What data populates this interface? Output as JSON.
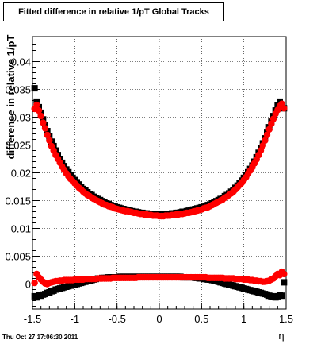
{
  "title": "Fitted difference in relative 1/pT  Global Tracks",
  "timestamp": "Thu Oct 27 17:06:30 2011",
  "chart_data": {
    "type": "scatter",
    "title": "Fitted difference in relative 1/pT  Global Tracks",
    "xlabel": "η",
    "ylabel": "difference in relative 1/pT",
    "xlim": [
      -1.5,
      1.5
    ],
    "ylim": [
      -0.0045,
      0.0445
    ],
    "xticks": [
      "-1.5",
      "-1",
      "-0.5",
      "0",
      "0.5",
      "1",
      "1.5"
    ],
    "xtick_values": [
      -1.5,
      -1,
      -0.5,
      0,
      0.5,
      1,
      1.5
    ],
    "yticks": [
      "0",
      "0.005",
      "0.01",
      "0.015",
      "0.02",
      "0.025",
      "0.03",
      "0.035",
      "0.04"
    ],
    "ytick_values": [
      0,
      0.005,
      0.01,
      0.015,
      0.02,
      0.025,
      0.03,
      0.035,
      0.04
    ],
    "grid": true,
    "series": [
      {
        "color": "#000000",
        "marker": "square",
        "x": [
          -1.475,
          -1.45,
          -1.425,
          -1.4,
          -1.375,
          -1.35,
          -1.325,
          -1.3,
          -1.275,
          -1.25,
          -1.225,
          -1.2,
          -1.175,
          -1.15,
          -1.125,
          -1.1,
          -1.075,
          -1.05,
          -1.025,
          -1.0,
          -0.975,
          -0.95,
          -0.925,
          -0.9,
          -0.875,
          -0.85,
          -0.825,
          -0.8,
          -0.775,
          -0.75,
          -0.725,
          -0.7,
          -0.675,
          -0.65,
          -0.625,
          -0.6,
          -0.575,
          -0.55,
          -0.525,
          -0.5,
          -0.475,
          -0.45,
          -0.425,
          -0.4,
          -0.375,
          -0.35,
          -0.325,
          -0.3,
          -0.275,
          -0.25,
          -0.225,
          -0.2,
          -0.175,
          -0.15,
          -0.125,
          -0.1,
          -0.075,
          -0.05,
          -0.025,
          0.0,
          0.025,
          0.05,
          0.075,
          0.1,
          0.125,
          0.15,
          0.175,
          0.2,
          0.225,
          0.25,
          0.275,
          0.3,
          0.325,
          0.35,
          0.375,
          0.4,
          0.425,
          0.45,
          0.475,
          0.5,
          0.525,
          0.55,
          0.575,
          0.6,
          0.625,
          0.65,
          0.675,
          0.7,
          0.725,
          0.75,
          0.775,
          0.8,
          0.825,
          0.85,
          0.875,
          0.9,
          0.925,
          0.95,
          0.975,
          1.0,
          1.025,
          1.05,
          1.075,
          1.1,
          1.125,
          1.15,
          1.175,
          1.2,
          1.225,
          1.25,
          1.275,
          1.3,
          1.325,
          1.35,
          1.375,
          1.4,
          1.425,
          1.45,
          1.475
        ],
        "y": [
          0.0352,
          0.0328,
          0.0318,
          0.0308,
          0.0296,
          0.0285,
          0.0275,
          0.0265,
          0.0256,
          0.0248,
          0.024,
          0.0232,
          0.0225,
          0.0218,
          0.0212,
          0.0206,
          0.0201,
          0.0196,
          0.0191,
          0.0187,
          0.0183,
          0.0179,
          0.0175,
          0.0171,
          0.0168,
          0.0165,
          0.0162,
          0.016,
          0.0157,
          0.0155,
          0.0153,
          0.0151,
          0.0149,
          0.0147,
          0.0145,
          0.0144,
          0.0142,
          0.014,
          0.0139,
          0.0138,
          0.0137,
          0.0136,
          0.0135,
          0.0134,
          0.0133,
          0.0132,
          0.0131,
          0.013,
          0.013,
          0.0129,
          0.0128,
          0.0128,
          0.0127,
          0.0127,
          0.0126,
          0.0126,
          0.0126,
          0.0125,
          0.0125,
          0.0125,
          0.0125,
          0.0125,
          0.0126,
          0.0126,
          0.0126,
          0.0127,
          0.0127,
          0.0128,
          0.0128,
          0.0129,
          0.013,
          0.013,
          0.0131,
          0.0132,
          0.0133,
          0.0134,
          0.0135,
          0.0136,
          0.0137,
          0.0138,
          0.0139,
          0.014,
          0.0142,
          0.0143,
          0.0145,
          0.0147,
          0.0149,
          0.0151,
          0.0153,
          0.0155,
          0.0158,
          0.016,
          0.0163,
          0.0166,
          0.0169,
          0.0173,
          0.0177,
          0.0181,
          0.0186,
          0.0191,
          0.0196,
          0.0201,
          0.0207,
          0.0213,
          0.022,
          0.0228,
          0.0236,
          0.0244,
          0.0253,
          0.0262,
          0.0272,
          0.0282,
          0.0292,
          0.0302,
          0.0312,
          0.0322,
          0.0328,
          0.0322,
          0.0316
        ],
        "y2": [
          -0.0022,
          -0.0024,
          -0.002,
          -0.0021,
          -0.0019,
          -0.0018,
          -0.0016,
          -0.0015,
          -0.0013,
          -0.0012,
          -0.001,
          -0.0009,
          -0.0008,
          -0.0007,
          -0.0006,
          -0.0005,
          -0.0004,
          -0.0003,
          -0.0002,
          -0.0001,
          0.0,
          0.0001,
          0.0002,
          0.0003,
          0.0004,
          0.0005,
          0.0006,
          0.0007,
          0.0008,
          0.0009,
          0.001,
          0.001,
          0.0011,
          0.0011,
          0.0011,
          0.0012,
          0.0012,
          0.0012,
          0.0012,
          0.0012,
          0.0013,
          0.0013,
          0.0013,
          0.0013,
          0.0013,
          0.0013,
          0.0013,
          0.0013,
          0.0013,
          0.0013,
          0.0013,
          0.0013,
          0.0013,
          0.0013,
          0.0013,
          0.0013,
          0.0013,
          0.0013,
          0.0013,
          0.0013,
          0.0013,
          0.0013,
          0.0013,
          0.0013,
          0.0013,
          0.0013,
          0.0013,
          0.0013,
          0.0013,
          0.0013,
          0.0012,
          0.0012,
          0.0012,
          0.0012,
          0.0012,
          0.0012,
          0.0011,
          0.0011,
          0.001,
          0.001,
          0.0009,
          0.0009,
          0.0008,
          0.0008,
          0.0007,
          0.0006,
          0.0005,
          0.0004,
          0.0003,
          0.0002,
          0.0001,
          0.0,
          -0.0001,
          -0.0002,
          -0.0003,
          -0.0004,
          -0.0005,
          -0.0006,
          -0.0007,
          -0.0008,
          -0.0009,
          -0.001,
          -0.0011,
          -0.0012,
          -0.0013,
          -0.0014,
          -0.0015,
          -0.0016,
          -0.0017,
          -0.0018,
          -0.0019,
          -0.0021,
          -0.0022,
          -0.0023,
          -0.0024,
          -0.0022,
          -0.002,
          -0.0021,
          0.0003
        ]
      },
      {
        "color": "#ff0000",
        "marker": "circle",
        "x": [
          -1.475,
          -1.45,
          -1.425,
          -1.4,
          -1.375,
          -1.35,
          -1.325,
          -1.3,
          -1.275,
          -1.25,
          -1.225,
          -1.2,
          -1.175,
          -1.15,
          -1.125,
          -1.1,
          -1.075,
          -1.05,
          -1.025,
          -1.0,
          -0.975,
          -0.95,
          -0.925,
          -0.9,
          -0.875,
          -0.85,
          -0.825,
          -0.8,
          -0.775,
          -0.75,
          -0.725,
          -0.7,
          -0.675,
          -0.65,
          -0.625,
          -0.6,
          -0.575,
          -0.55,
          -0.525,
          -0.5,
          -0.475,
          -0.45,
          -0.425,
          -0.4,
          -0.375,
          -0.35,
          -0.325,
          -0.3,
          -0.275,
          -0.25,
          -0.225,
          -0.2,
          -0.175,
          -0.15,
          -0.125,
          -0.1,
          -0.075,
          -0.05,
          -0.025,
          0.0,
          0.025,
          0.05,
          0.075,
          0.1,
          0.125,
          0.15,
          0.175,
          0.2,
          0.225,
          0.25,
          0.275,
          0.3,
          0.325,
          0.35,
          0.375,
          0.4,
          0.425,
          0.45,
          0.475,
          0.5,
          0.525,
          0.55,
          0.575,
          0.6,
          0.625,
          0.65,
          0.675,
          0.7,
          0.725,
          0.75,
          0.775,
          0.8,
          0.825,
          0.85,
          0.875,
          0.9,
          0.925,
          0.95,
          0.975,
          1.0,
          1.025,
          1.05,
          1.075,
          1.1,
          1.125,
          1.15,
          1.175,
          1.2,
          1.225,
          1.25,
          1.275,
          1.3,
          1.325,
          1.35,
          1.375,
          1.4,
          1.425,
          1.45,
          1.475
        ],
        "y": [
          0.0315,
          0.0322,
          0.0312,
          0.0302,
          0.029,
          0.028,
          0.0268,
          0.0258,
          0.0248,
          0.024,
          0.0232,
          0.0225,
          0.0218,
          0.0211,
          0.0205,
          0.0199,
          0.0194,
          0.0189,
          0.0185,
          0.0181,
          0.0177,
          0.0173,
          0.017,
          0.0166,
          0.0163,
          0.016,
          0.0158,
          0.0155,
          0.0153,
          0.0151,
          0.0149,
          0.0147,
          0.0145,
          0.0143,
          0.0142,
          0.014,
          0.0139,
          0.0138,
          0.0136,
          0.0135,
          0.0134,
          0.0133,
          0.0132,
          0.0131,
          0.0131,
          0.013,
          0.0129,
          0.0128,
          0.0128,
          0.0127,
          0.0126,
          0.0126,
          0.0125,
          0.0125,
          0.0124,
          0.0124,
          0.0123,
          0.0123,
          0.0123,
          0.0122,
          0.0122,
          0.0122,
          0.0123,
          0.0123,
          0.0123,
          0.0124,
          0.0124,
          0.0125,
          0.0125,
          0.0126,
          0.0126,
          0.0127,
          0.0128,
          0.0128,
          0.0129,
          0.013,
          0.0131,
          0.0132,
          0.0133,
          0.0134,
          0.0136,
          0.0137,
          0.0138,
          0.014,
          0.0142,
          0.0144,
          0.0146,
          0.0148,
          0.015,
          0.0152,
          0.0155,
          0.0157,
          0.016,
          0.0163,
          0.0166,
          0.017,
          0.0174,
          0.0178,
          0.0182,
          0.0187,
          0.0192,
          0.0198,
          0.0204,
          0.021,
          0.0217,
          0.0224,
          0.0232,
          0.024,
          0.0249,
          0.0258,
          0.0268,
          0.0278,
          0.0288,
          0.0297,
          0.0306,
          0.0313,
          0.032,
          0.0324,
          0.0316
        ],
        "y2": [
          0.0002,
          0.0018,
          0.0012,
          0.0008,
          0.0004,
          0.0001,
          0.0,
          0.0002,
          0.0003,
          0.0004,
          0.0005,
          0.0005,
          0.0006,
          0.0006,
          0.0007,
          0.0007,
          0.0007,
          0.0007,
          0.0007,
          0.0008,
          0.0008,
          0.0008,
          0.0008,
          0.0008,
          0.0009,
          0.0009,
          0.0009,
          0.0009,
          0.0009,
          0.0009,
          0.001,
          0.001,
          0.001,
          0.001,
          0.001,
          0.001,
          0.001,
          0.0011,
          0.0011,
          0.0011,
          0.0011,
          0.0011,
          0.0011,
          0.0011,
          0.0011,
          0.0011,
          0.0011,
          0.0011,
          0.0011,
          0.0012,
          0.0012,
          0.0012,
          0.0012,
          0.0012,
          0.0012,
          0.0012,
          0.0012,
          0.0012,
          0.0012,
          0.0012,
          0.0012,
          0.0012,
          0.0012,
          0.0012,
          0.0012,
          0.0012,
          0.0012,
          0.0012,
          0.0012,
          0.0012,
          0.0012,
          0.0012,
          0.0012,
          0.0012,
          0.0012,
          0.0012,
          0.0012,
          0.0012,
          0.0012,
          0.0012,
          0.0012,
          0.0012,
          0.0011,
          0.0011,
          0.0011,
          0.0011,
          0.0011,
          0.0011,
          0.0011,
          0.0011,
          0.001,
          0.001,
          0.001,
          0.001,
          0.001,
          0.0009,
          0.0009,
          0.0009,
          0.0009,
          0.0008,
          0.0008,
          0.0008,
          0.0007,
          0.0007,
          0.0006,
          0.0006,
          0.0005,
          0.0005,
          0.0004,
          0.0004,
          0.0005,
          0.0006,
          0.0008,
          0.001,
          0.0014,
          0.0018,
          0.0016,
          0.0022,
          0.0018
        ]
      }
    ]
  }
}
